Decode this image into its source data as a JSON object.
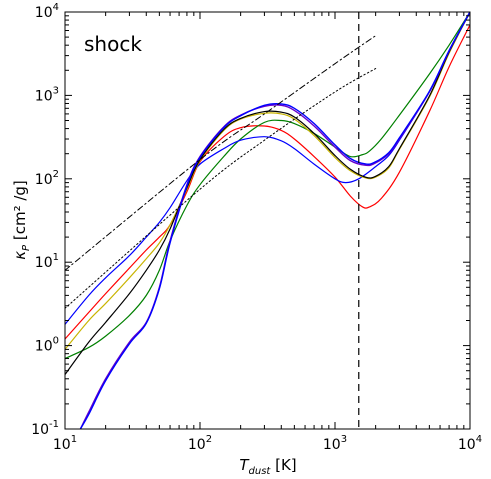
{
  "chart_data": {
    "type": "line",
    "title": "",
    "annotation": "shock",
    "xlabel": {
      "symbol": "T",
      "subscript": "dust",
      "unit": " [K]"
    },
    "ylabel": {
      "symbol": "κ",
      "subscript": "P",
      "unit": " [cm² /g]"
    },
    "xscale": "log",
    "yscale": "log",
    "xlim": [
      10,
      10000
    ],
    "ylim": [
      0.1,
      10000
    ],
    "x_ticks": [
      {
        "base": "10",
        "exp": "1"
      },
      {
        "base": "10",
        "exp": "2"
      },
      {
        "base": "10",
        "exp": "3"
      },
      {
        "base": "10",
        "exp": "4"
      }
    ],
    "y_ticks": [
      {
        "base": "10",
        "exp": "-1"
      },
      {
        "base": "10",
        "exp": "0"
      },
      {
        "base": "10",
        "exp": "1"
      },
      {
        "base": "10",
        "exp": "2"
      },
      {
        "base": "10",
        "exp": "3"
      },
      {
        "base": "10",
        "exp": "4"
      }
    ],
    "grid": false,
    "legend": "none",
    "vline": {
      "x": 1500,
      "style": "dashed",
      "color": "#000000"
    },
    "series": [
      {
        "color": "#ff0000",
        "style": "solid",
        "width": 1.2,
        "x": [
          10,
          15,
          20,
          30,
          40,
          50,
          60,
          80,
          100,
          150,
          200,
          300,
          400,
          500,
          700,
          1000,
          1300,
          1600,
          1800,
          2200,
          3000,
          5000,
          7000,
          10000
        ],
        "y": [
          1.2,
          2.5,
          4.2,
          8.5,
          14,
          20,
          28,
          70,
          160,
          320,
          410,
          430,
          380,
          300,
          185,
          105,
          62,
          46,
          46,
          58,
          120,
          640,
          2200,
          7000
        ]
      },
      {
        "color": "#008000",
        "style": "solid",
        "width": 1.2,
        "x": [
          10,
          15,
          20,
          30,
          40,
          50,
          60,
          80,
          100,
          150,
          200,
          300,
          400,
          500,
          700,
          1000,
          1300,
          1600,
          1800,
          2200,
          3000,
          5000,
          7000,
          10000
        ],
        "y": [
          0.7,
          0.95,
          1.3,
          2.3,
          4,
          8,
          18,
          48,
          85,
          185,
          300,
          475,
          500,
          460,
          350,
          240,
          185,
          195,
          215,
          300,
          580,
          1800,
          4000,
          10000
        ]
      },
      {
        "color": "#0000ff",
        "style": "solid",
        "width": 1.2,
        "x": [
          10,
          15,
          20,
          30,
          40,
          50,
          60,
          80,
          100,
          150,
          200,
          300,
          400,
          500,
          700,
          1000,
          1200,
          1500,
          2000,
          2500,
          3000,
          5000,
          7000,
          10000
        ],
        "y": [
          1.8,
          4,
          6.5,
          12,
          20,
          30,
          45,
          95,
          150,
          230,
          290,
          320,
          285,
          230,
          150,
          100,
          90,
          100,
          140,
          190,
          290,
          1100,
          3300,
          10000
        ]
      },
      {
        "color": "#c8b400",
        "style": "solid",
        "width": 1.2,
        "x": [
          10,
          15,
          20,
          30,
          40,
          50,
          60,
          80,
          100,
          150,
          200,
          300,
          400,
          500,
          700,
          1000,
          1300,
          1700,
          2000,
          2500,
          3000,
          5000,
          7000,
          10000
        ],
        "y": [
          0.9,
          2,
          3.2,
          6.5,
          11,
          17,
          28,
          75,
          165,
          380,
          520,
          610,
          600,
          520,
          330,
          180,
          125,
          102,
          105,
          135,
          225,
          950,
          3200,
          10000
        ]
      },
      {
        "color": "#000000",
        "style": "solid",
        "width": 1.2,
        "x": [
          10,
          15,
          20,
          30,
          40,
          50,
          60,
          80,
          100,
          150,
          200,
          300,
          400,
          500,
          700,
          1000,
          1300,
          1700,
          2000,
          2500,
          3000,
          5000,
          7000,
          10000
        ],
        "y": [
          0.45,
          1.1,
          1.9,
          4.2,
          8,
          14,
          25,
          78,
          170,
          390,
          530,
          640,
          630,
          550,
          350,
          190,
          130,
          104,
          107,
          140,
          230,
          980,
          3300,
          10000
        ]
      },
      {
        "color": "#6600cc",
        "style": "solid",
        "width": 1.4,
        "x": [
          13,
          15,
          20,
          30,
          40,
          50,
          60,
          80,
          100,
          150,
          200,
          300,
          400,
          500,
          700,
          1000,
          1300,
          1700,
          2000,
          2500,
          3000,
          5000,
          7000,
          10000
        ],
        "y": [
          0.1,
          0.16,
          0.4,
          1.1,
          1.9,
          5,
          18,
          85,
          185,
          420,
          580,
          740,
          760,
          660,
          430,
          240,
          165,
          145,
          155,
          200,
          300,
          1100,
          3400,
          10000
        ]
      },
      {
        "color": "#0000ff",
        "style": "solid",
        "width": 1.4,
        "x": [
          13,
          15,
          20,
          30,
          40,
          50,
          60,
          80,
          100,
          150,
          200,
          300,
          400,
          500,
          700,
          1000,
          1300,
          1700,
          2000,
          2500,
          3000,
          5000,
          7000,
          10000
        ],
        "y": [
          0.1,
          0.15,
          0.38,
          1.05,
          1.85,
          4.8,
          17,
          82,
          180,
          410,
          570,
          760,
          790,
          700,
          460,
          255,
          175,
          150,
          160,
          205,
          310,
          1120,
          3450,
          10000
        ]
      },
      {
        "color": "#000000",
        "style": "dashdot",
        "width": 1.0,
        "x": [
          10,
          100,
          300,
          1000,
          2000
        ],
        "y": [
          8,
          170,
          600,
          2400,
          5200
        ]
      },
      {
        "color": "#000000",
        "style": "dotted",
        "width": 1.0,
        "x": [
          10,
          100,
          300,
          1000,
          2000
        ],
        "y": [
          2.8,
          75,
          290,
          1100,
          2100
        ]
      }
    ]
  }
}
